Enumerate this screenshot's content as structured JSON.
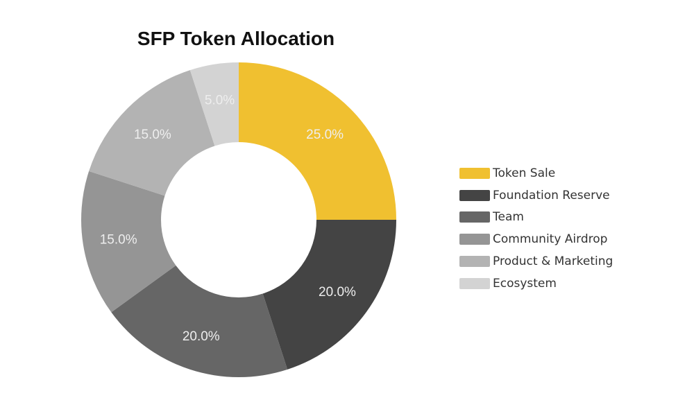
{
  "title": "SFP Token Allocation",
  "chart_data": {
    "type": "pie",
    "subtype": "donut",
    "title": "SFP Token Allocation",
    "categories": [
      "Token Sale",
      "Foundation Reserve",
      "Team",
      "Community Airdrop",
      "Product & Marketing",
      "Ecosystem"
    ],
    "values": [
      25.0,
      20.0,
      20.0,
      15.0,
      15.0,
      5.0
    ],
    "labels": [
      "25.0%",
      "20.0%",
      "20.0%",
      "15.0%",
      "15.0%",
      "5.0%"
    ],
    "colors": [
      "#f0c030",
      "#444444",
      "#666666",
      "#959595",
      "#b3b3b3",
      "#d3d3d3"
    ],
    "legend_position": "right",
    "start_angle": "12 o'clock, clockwise"
  },
  "legend": [
    {
      "label": "Token Sale",
      "color": "#f0c030"
    },
    {
      "label": "Foundation Reserve",
      "color": "#444444"
    },
    {
      "label": "Team",
      "color": "#666666"
    },
    {
      "label": "Community Airdrop",
      "color": "#959595"
    },
    {
      "label": "Product & Marketing",
      "color": "#b3b3b3"
    },
    {
      "label": "Ecosystem",
      "color": "#d3d3d3"
    }
  ]
}
